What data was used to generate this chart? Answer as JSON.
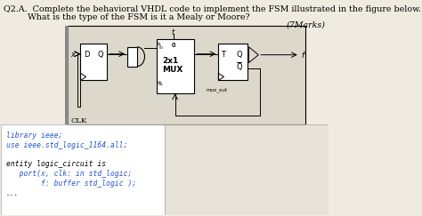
{
  "title_line1": "Q2.A.  Complete the behavioral VHDL code to implement the FSM illustrated in the figure below.",
  "title_line2": "         What is the type of the FSM is it a Mealy or Moore?",
  "marks": "(7Marks)",
  "bg_color": "#f0ebe0",
  "diagram_bg": "#ddd8cc",
  "code_left_bg": "#ffffff",
  "code_right_bg": "#e8e3d8",
  "code_text_blue": "#2255cc",
  "code_text_black": "#000000",
  "font_size_title": 6.8,
  "font_size_code": 5.8,
  "code_lines": [
    {
      "text": "library ieee;",
      "color": "blue",
      "indent": 0
    },
    {
      "text": "use ieee.std_logic_1164.all;",
      "color": "blue",
      "indent": 0
    },
    {
      "text": "",
      "color": "black",
      "indent": 0
    },
    {
      "text": "entity logic_circuit is",
      "color": "black",
      "indent": 0
    },
    {
      "text": "   port(x, clk: in std_logic;",
      "color": "blue",
      "indent": 0
    },
    {
      "text": "        f: buffer std_logic );",
      "color": "blue",
      "indent": 0
    },
    {
      "text": "...",
      "color": "black",
      "indent": 0
    }
  ]
}
